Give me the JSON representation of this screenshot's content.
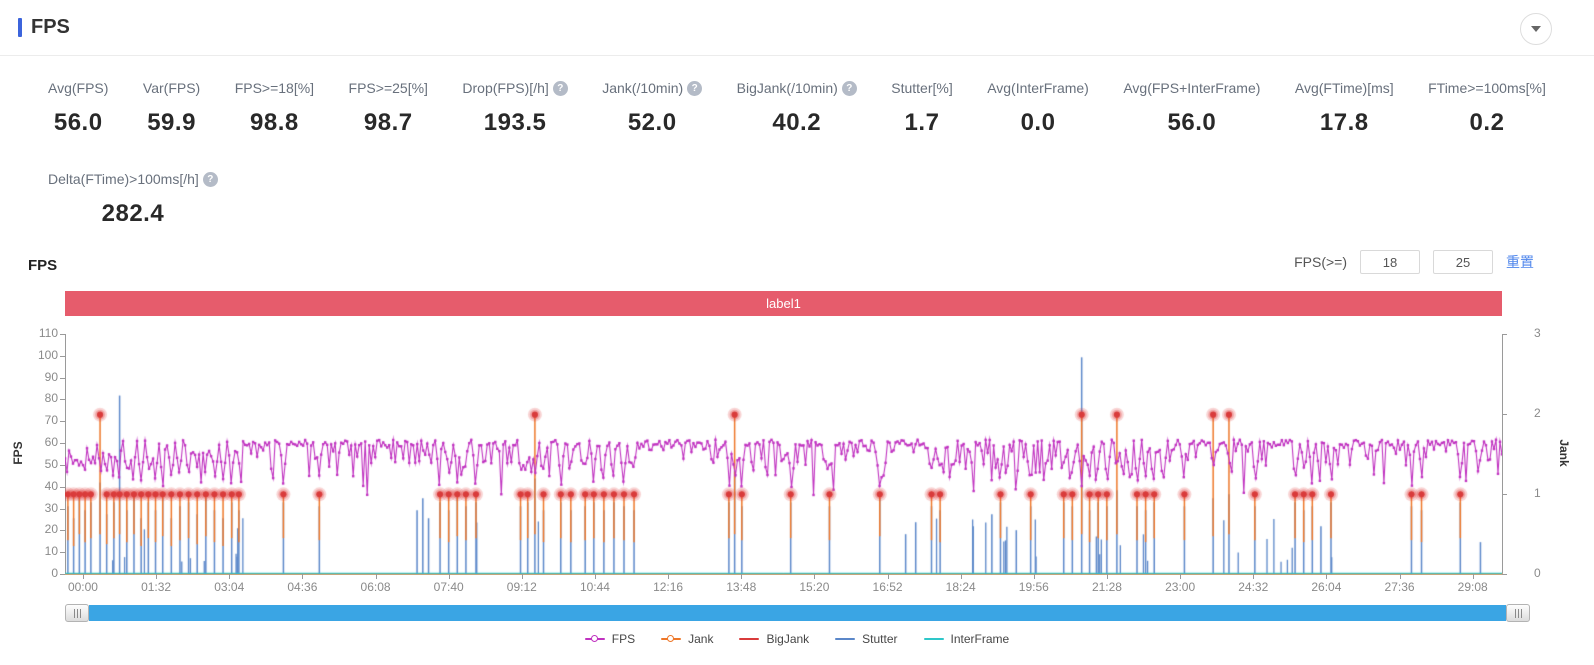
{
  "header": {
    "title": "FPS"
  },
  "stats": {
    "row1": [
      {
        "label": "Avg(FPS)",
        "value": "56.0",
        "help": false
      },
      {
        "label": "Var(FPS)",
        "value": "59.9",
        "help": false
      },
      {
        "label": "FPS>=18[%]",
        "value": "98.8",
        "help": false
      },
      {
        "label": "FPS>=25[%]",
        "value": "98.7",
        "help": false
      },
      {
        "label": "Drop(FPS)[/h]",
        "value": "193.5",
        "help": true
      },
      {
        "label": "Jank(/10min)",
        "value": "52.0",
        "help": true
      },
      {
        "label": "BigJank(/10min)",
        "value": "40.2",
        "help": true
      },
      {
        "label": "Stutter[%]",
        "value": "1.7",
        "help": false
      },
      {
        "label": "Avg(InterFrame)",
        "value": "0.0",
        "help": false
      },
      {
        "label": "Avg(FPS+InterFrame)",
        "value": "56.0",
        "help": false
      },
      {
        "label": "Avg(FTime)[ms]",
        "value": "17.8",
        "help": false
      },
      {
        "label": "FTime>=100ms[%]",
        "value": "0.2",
        "help": false
      }
    ],
    "row2": [
      {
        "label": "Delta(FTime)>100ms[/h]",
        "value": "282.4",
        "help": true
      }
    ],
    "help_glyph": "?"
  },
  "chart": {
    "section_title": "FPS",
    "filter": {
      "label": "FPS(>=)",
      "min": "18",
      "max": "25",
      "reset": "重置"
    },
    "banner": "label1",
    "legend": [
      {
        "label": "FPS",
        "color": "#c032c0",
        "marker": "line-dot"
      },
      {
        "label": "Jank",
        "color": "#ee7728",
        "marker": "line-dot"
      },
      {
        "label": "BigJank",
        "color": "#d93b3b",
        "marker": "line"
      },
      {
        "label": "Stutter",
        "color": "#5b87c9",
        "marker": "line"
      },
      {
        "label": "InterFrame",
        "color": "#2ec7c9",
        "marker": "line"
      }
    ],
    "chart_data": {
      "type": "line",
      "x_ticks": [
        "00:00",
        "01:32",
        "03:04",
        "04:36",
        "06:08",
        "07:40",
        "09:12",
        "10:44",
        "12:16",
        "13:48",
        "15:20",
        "16:52",
        "18:24",
        "19:56",
        "21:28",
        "23:00",
        "24:32",
        "26:04",
        "27:36",
        "29:08"
      ],
      "y_left": {
        "label": "FPS",
        "min": 0,
        "max": 110,
        "step": 10
      },
      "y_right": {
        "label": "Jank",
        "min": 0,
        "max": 3,
        "step": 1
      },
      "grid": false,
      "legend_position": "bottom",
      "series_colors": {
        "FPS": "#c032c0",
        "Jank": "#ee7728",
        "BigJank": "#d93b3b",
        "Stutter": "#5b87c9",
        "InterFrame": "#2ec7c9"
      },
      "fps_baseline": 60,
      "interframe_value": 0,
      "events_format": [
        "time_fraction",
        "jank_level_right_axis",
        "is_bigjank",
        "stutter_level_right_axis"
      ],
      "events": [
        [
          0.002,
          1,
          1,
          0.85
        ],
        [
          0.006,
          1,
          1,
          0.7
        ],
        [
          0.01,
          1,
          1,
          1.0
        ],
        [
          0.014,
          1,
          1,
          0.8
        ],
        [
          0.018,
          1,
          1,
          0.9
        ],
        [
          0.0244,
          2,
          1,
          1.15
        ],
        [
          0.029,
          1,
          1,
          0.75
        ],
        [
          0.034,
          1,
          1,
          0.9
        ],
        [
          0.038,
          1,
          1,
          2.24
        ],
        [
          0.043,
          1,
          1,
          0.8
        ],
        [
          0.048,
          1,
          1,
          1.0
        ],
        [
          0.053,
          1,
          1,
          0.7
        ],
        [
          0.058,
          1,
          1,
          0.9
        ],
        [
          0.063,
          1,
          1,
          0.8
        ],
        [
          0.068,
          1,
          1,
          0.95
        ],
        [
          0.074,
          1,
          1,
          0.7
        ],
        [
          0.08,
          1,
          1,
          0.85
        ],
        [
          0.086,
          1,
          1,
          0.9
        ],
        [
          0.092,
          1,
          1,
          0.75
        ],
        [
          0.098,
          1,
          1,
          0.95
        ],
        [
          0.104,
          1,
          1,
          0.8
        ],
        [
          0.11,
          1,
          1,
          0.7
        ],
        [
          0.116,
          1,
          1,
          0.9
        ],
        [
          0.121,
          1,
          1,
          0.8
        ],
        [
          0.152,
          1,
          1,
          0.9
        ],
        [
          0.177,
          1,
          1,
          0.85
        ],
        [
          0.245,
          0,
          0,
          0.8
        ],
        [
          0.249,
          0,
          0,
          0.95
        ],
        [
          0.253,
          0,
          0,
          0.7
        ],
        [
          0.261,
          1,
          1,
          0.9
        ],
        [
          0.267,
          1,
          1,
          0.8
        ],
        [
          0.273,
          1,
          1,
          0.95
        ],
        [
          0.279,
          1,
          1,
          0.85
        ],
        [
          0.286,
          1,
          1,
          0.9
        ],
        [
          0.317,
          1,
          1,
          0.85
        ],
        [
          0.322,
          1,
          1,
          0.9
        ],
        [
          0.327,
          2,
          1,
          1.2
        ],
        [
          0.333,
          1,
          1,
          0.8
        ],
        [
          0.345,
          1,
          1,
          0.9
        ],
        [
          0.352,
          1,
          1,
          0.8
        ],
        [
          0.362,
          1,
          1,
          0.85
        ],
        [
          0.368,
          1,
          1,
          0.9
        ],
        [
          0.375,
          1,
          1,
          0.8
        ],
        [
          0.382,
          1,
          1,
          0.9
        ],
        [
          0.389,
          1,
          1,
          0.85
        ],
        [
          0.396,
          1,
          1,
          0.8
        ],
        [
          0.462,
          1,
          1,
          0.9
        ],
        [
          0.466,
          2,
          1,
          1.3
        ],
        [
          0.471,
          1,
          1,
          0.85
        ],
        [
          0.505,
          1,
          1,
          0.9
        ],
        [
          0.532,
          1,
          1,
          0.85
        ],
        [
          0.567,
          1,
          1,
          0.95
        ],
        [
          0.585,
          0,
          0,
          0.5
        ],
        [
          0.592,
          0,
          0,
          0.65
        ],
        [
          0.603,
          1,
          1,
          0.85
        ],
        [
          0.609,
          1,
          1,
          0.8
        ],
        [
          0.632,
          0,
          0,
          0.6
        ],
        [
          0.645,
          0,
          0,
          0.75
        ],
        [
          0.651,
          1,
          1,
          0.9
        ],
        [
          0.662,
          0,
          0,
          0.55
        ],
        [
          0.672,
          1,
          1,
          0.85
        ],
        [
          0.695,
          1,
          1,
          0.9
        ],
        [
          0.701,
          1,
          1,
          0.85
        ],
        [
          0.7075,
          2,
          1,
          2.72
        ],
        [
          0.713,
          1,
          1,
          0.8
        ],
        [
          0.719,
          1,
          1,
          0.9
        ],
        [
          0.725,
          1,
          1,
          0.85
        ],
        [
          0.732,
          2,
          1,
          1.05
        ],
        [
          0.746,
          1,
          1,
          0.85
        ],
        [
          0.752,
          1,
          1,
          0.8
        ],
        [
          0.758,
          1,
          1,
          0.9
        ],
        [
          0.779,
          1,
          1,
          0.85
        ],
        [
          0.799,
          2,
          1,
          0.95
        ],
        [
          0.81,
          2,
          1,
          1.0
        ],
        [
          0.828,
          1,
          1,
          0.85
        ],
        [
          0.856,
          1,
          1,
          0.9
        ],
        [
          0.862,
          1,
          1,
          0.8
        ],
        [
          0.868,
          1,
          1,
          0.85
        ],
        [
          0.874,
          0,
          0,
          0.6
        ],
        [
          0.881,
          1,
          1,
          0.9
        ],
        [
          0.937,
          1,
          1,
          0.85
        ],
        [
          0.944,
          1,
          1,
          0.8
        ],
        [
          0.971,
          1,
          1,
          0.9
        ],
        [
          0.985,
          0,
          0,
          0.4
        ]
      ]
    }
  }
}
